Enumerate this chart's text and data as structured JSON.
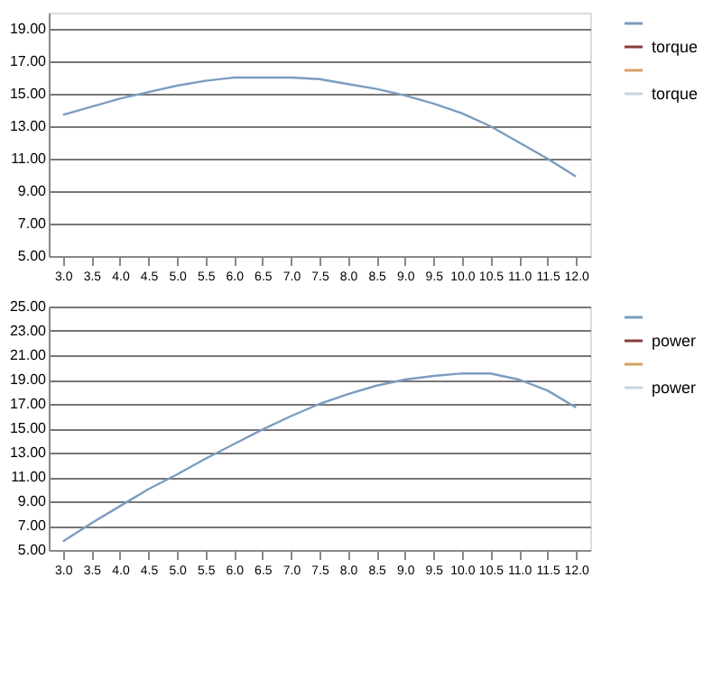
{
  "chart_data": [
    {
      "type": "line",
      "categories": [
        "3.0",
        "3.5",
        "4.0",
        "4.5",
        "5.0",
        "5.5",
        "6.0",
        "6.5",
        "7.0",
        "7.5",
        "8.0",
        "8.5",
        "9.0",
        "9.5",
        "10.0",
        "10.5",
        "11.0",
        "11.5",
        "12.0"
      ],
      "series": [
        {
          "name": null,
          "color": "#7c9cc0",
          "values": [
            13.7,
            14.2,
            14.7,
            15.1,
            15.5,
            15.8,
            16.0,
            16.0,
            16.0,
            15.9,
            15.6,
            15.3,
            14.9,
            14.4,
            13.8,
            13.0,
            12.0,
            11.0,
            9.9
          ]
        },
        {
          "name": "torque",
          "color": "#8b3a3a",
          "values": [
            null,
            null,
            null,
            null,
            null,
            null,
            null,
            null,
            null,
            null,
            null,
            null,
            null,
            null,
            null,
            null,
            null,
            null,
            null
          ]
        },
        {
          "name": null,
          "color": "#d9a060",
          "values": [
            null,
            null,
            null,
            null,
            null,
            null,
            null,
            null,
            null,
            null,
            null,
            null,
            null,
            null,
            null,
            null,
            null,
            null,
            null
          ]
        },
        {
          "name": "torque",
          "color": "#c8d4e0",
          "values": [
            null,
            null,
            null,
            null,
            null,
            null,
            null,
            null,
            null,
            null,
            null,
            null,
            null,
            null,
            null,
            null,
            null,
            null,
            null
          ]
        }
      ],
      "ylim": [
        5,
        20
      ],
      "yticks": [
        {
          "value": 5,
          "label": "5.00"
        },
        {
          "value": 7,
          "label": "7.00"
        },
        {
          "value": 9,
          "label": "9.00"
        },
        {
          "value": 11,
          "label": "11.00"
        },
        {
          "value": 13,
          "label": "13.00"
        },
        {
          "value": 15,
          "label": "15.00"
        },
        {
          "value": 17,
          "label": "17.00"
        },
        {
          "value": 19,
          "label": "19.00"
        }
      ],
      "grid": "y",
      "legend": "right"
    },
    {
      "type": "line",
      "categories": [
        "3.0",
        "3.5",
        "4.0",
        "4.5",
        "5.0",
        "5.5",
        "6.0",
        "6.5",
        "7.0",
        "7.5",
        "8.0",
        "8.5",
        "9.0",
        "9.5",
        "10.0",
        "10.5",
        "11.0",
        "11.5",
        "12.0"
      ],
      "series": [
        {
          "name": null,
          "color": "#7c9cc0",
          "values": [
            5.7,
            7.2,
            8.6,
            10.0,
            11.2,
            12.5,
            13.7,
            14.9,
            16.0,
            17.0,
            17.8,
            18.5,
            19.0,
            19.3,
            19.5,
            19.5,
            19.0,
            18.1,
            16.7
          ]
        },
        {
          "name": "power",
          "color": "#8b3a3a",
          "values": [
            null,
            null,
            null,
            null,
            null,
            null,
            null,
            null,
            null,
            null,
            null,
            null,
            null,
            null,
            null,
            null,
            null,
            null,
            null
          ]
        },
        {
          "name": null,
          "color": "#d9a060",
          "values": [
            null,
            null,
            null,
            null,
            null,
            null,
            null,
            null,
            null,
            null,
            null,
            null,
            null,
            null,
            null,
            null,
            null,
            null,
            null
          ]
        },
        {
          "name": "power",
          "color": "#c8d4e0",
          "values": [
            null,
            null,
            null,
            null,
            null,
            null,
            null,
            null,
            null,
            null,
            null,
            null,
            null,
            null,
            null,
            null,
            null,
            null,
            null
          ]
        }
      ],
      "ylim": [
        5,
        25
      ],
      "yticks": [
        {
          "value": 5,
          "label": "5.00"
        },
        {
          "value": 7,
          "label": "7.00"
        },
        {
          "value": 9,
          "label": "9.00"
        },
        {
          "value": 11,
          "label": "11.00"
        },
        {
          "value": 13,
          "label": "13.00"
        },
        {
          "value": 15,
          "label": "15.00"
        },
        {
          "value": 17,
          "label": "17.00"
        },
        {
          "value": 19,
          "label": "19.00"
        },
        {
          "value": 21,
          "label": "21.00"
        },
        {
          "value": 23,
          "label": "23.00"
        },
        {
          "value": 25,
          "label": "25.00"
        }
      ],
      "grid": "y",
      "legend": "right"
    }
  ]
}
